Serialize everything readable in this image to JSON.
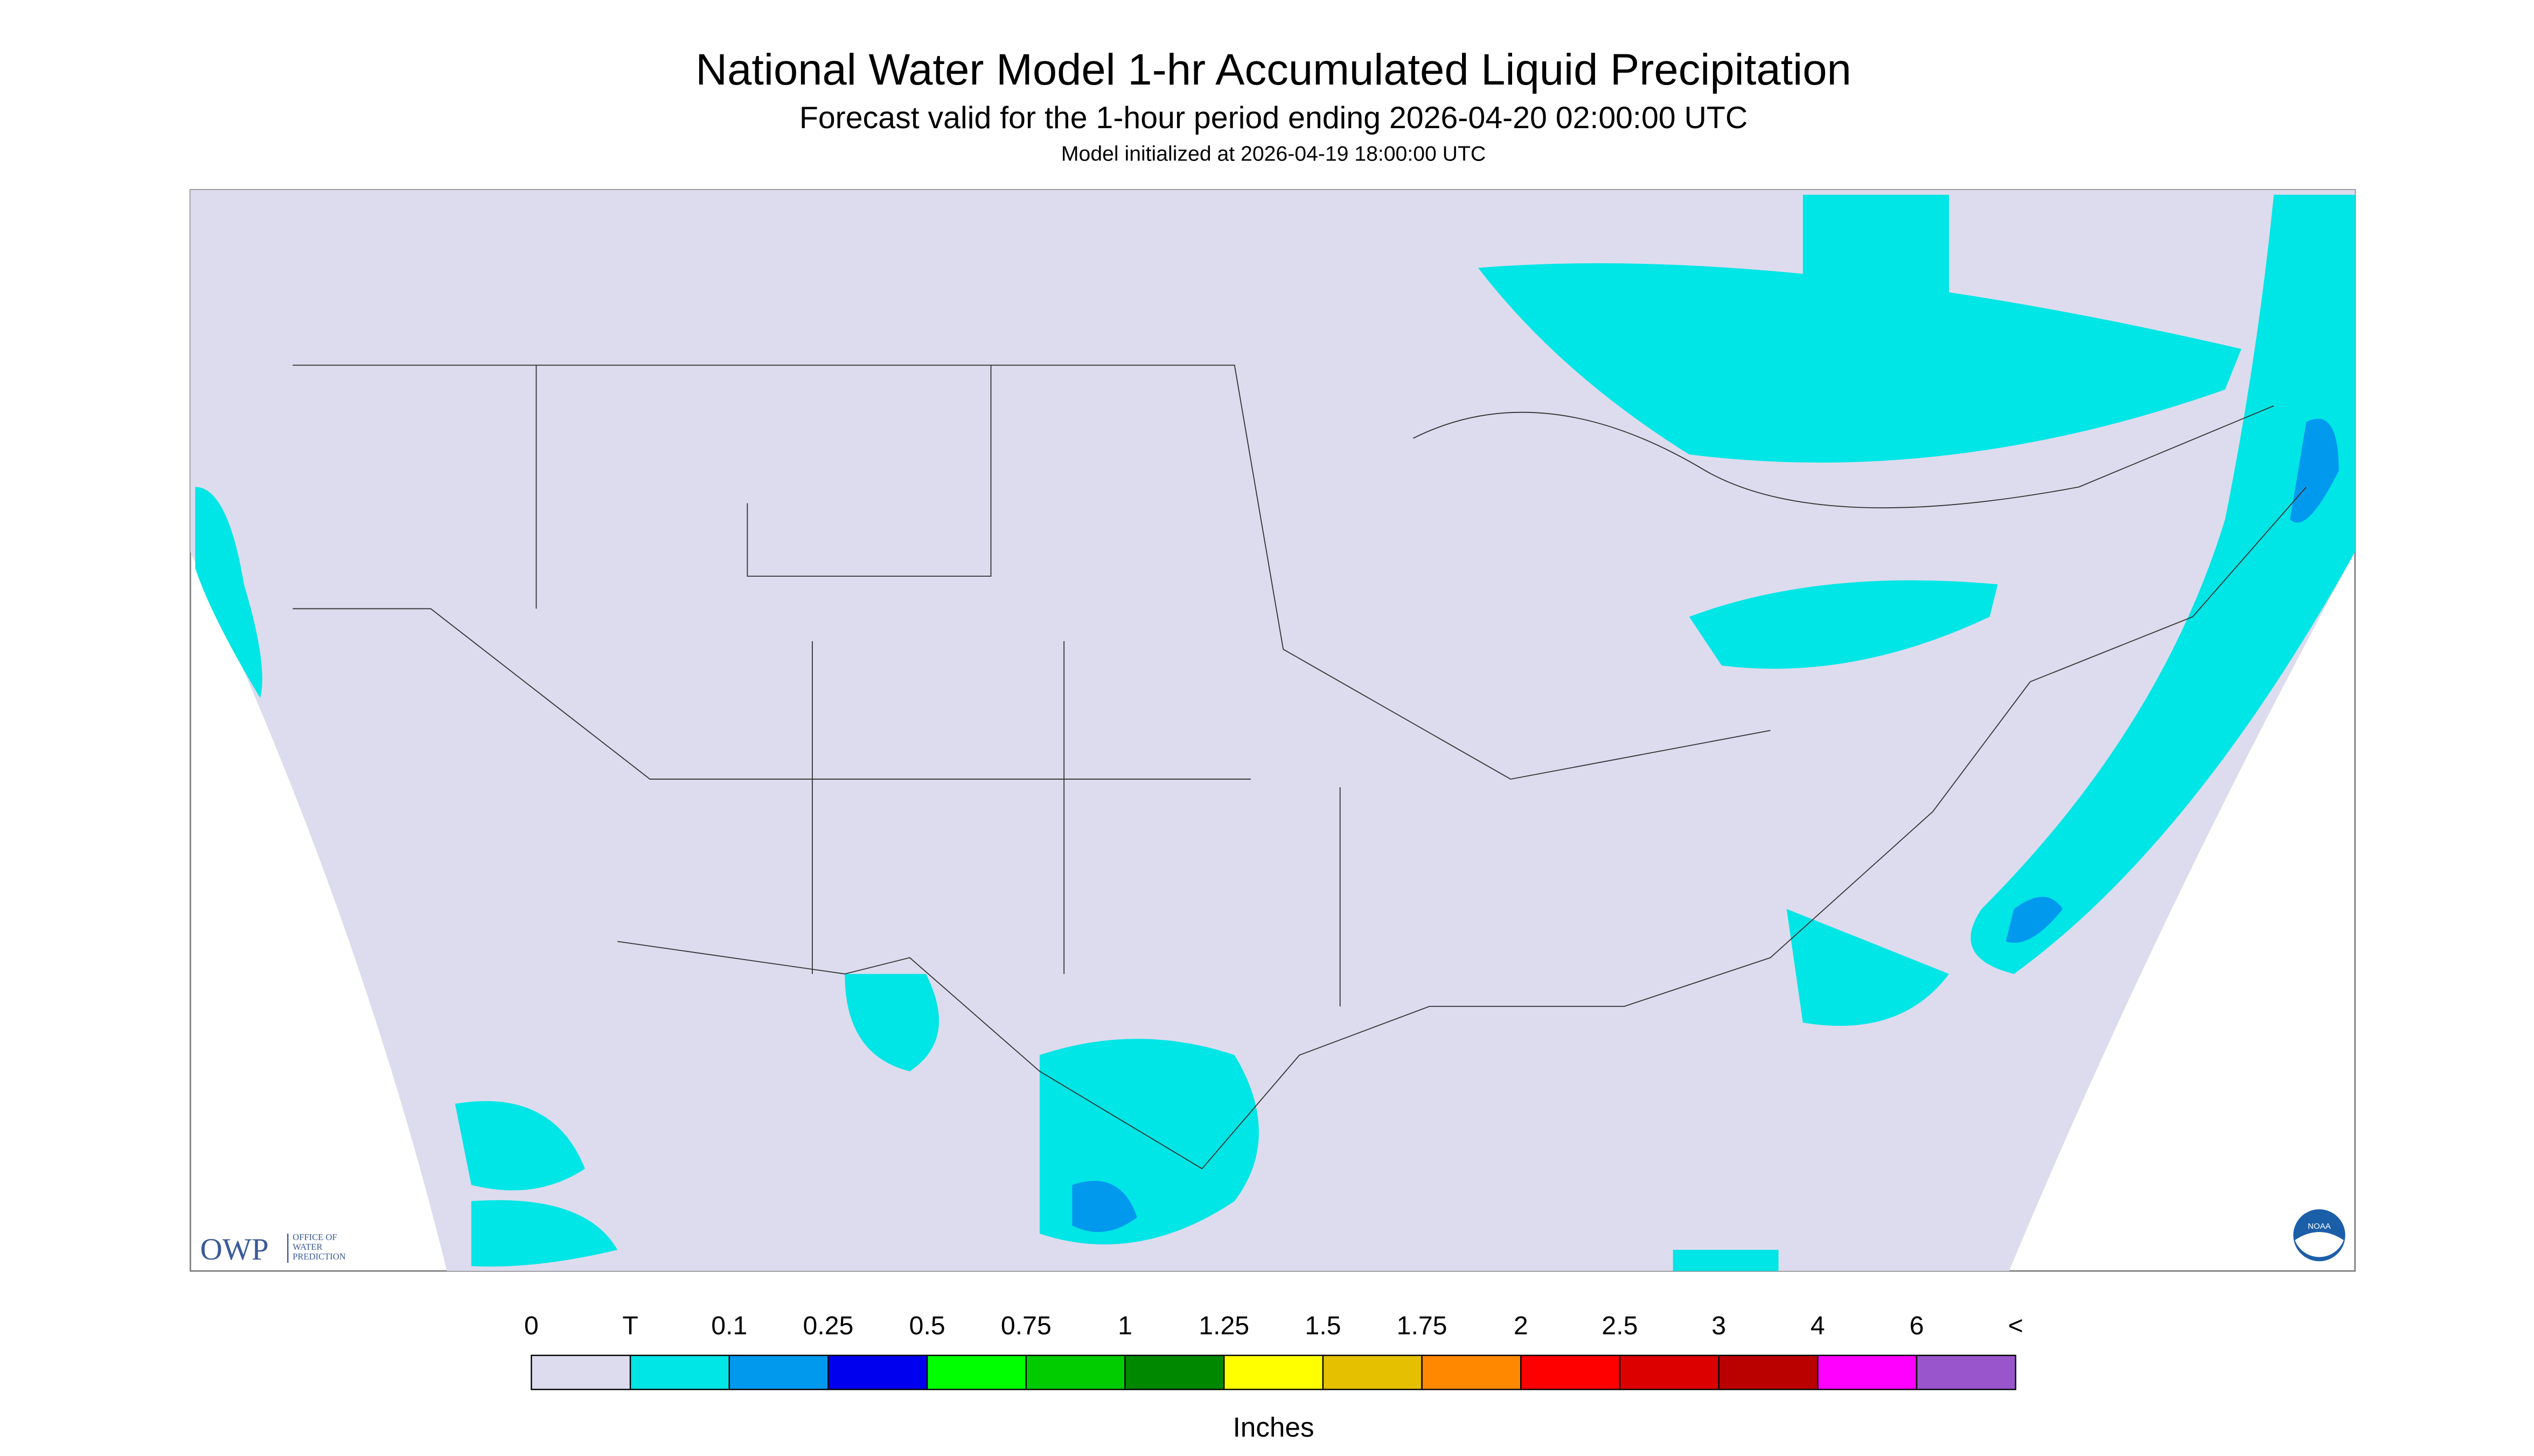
{
  "header": {
    "title": "National Water Model 1-hr Accumulated Liquid Precipitation",
    "subtitle": "Forecast valid for the 1-hour period ending 2026-04-20 02:00:00 UTC",
    "initialized": "Model initialized at 2026-04-19 18:00:00 UTC"
  },
  "logos": {
    "owp": "OWP",
    "owp_lines": [
      "OFFICE OF",
      "WATER",
      "PREDICTION"
    ],
    "noaa": "NOAA"
  },
  "legend": {
    "labels": [
      "0",
      "T",
      "0.1",
      "0.25",
      "0.5",
      "0.75",
      "1",
      "1.25",
      "1.5",
      "1.75",
      "2",
      "2.5",
      "3",
      "4",
      "6",
      "<"
    ],
    "colors": [
      "#dcdcee",
      "#00e5e5",
      "#0099ee",
      "#0000ee",
      "#00ff00",
      "#00cc00",
      "#008800",
      "#ffff00",
      "#e5c000",
      "#ff8800",
      "#ff0000",
      "#dd0000",
      "#bb0000",
      "#ff00ff",
      "#9955cc"
    ],
    "units": "Inches"
  }
}
